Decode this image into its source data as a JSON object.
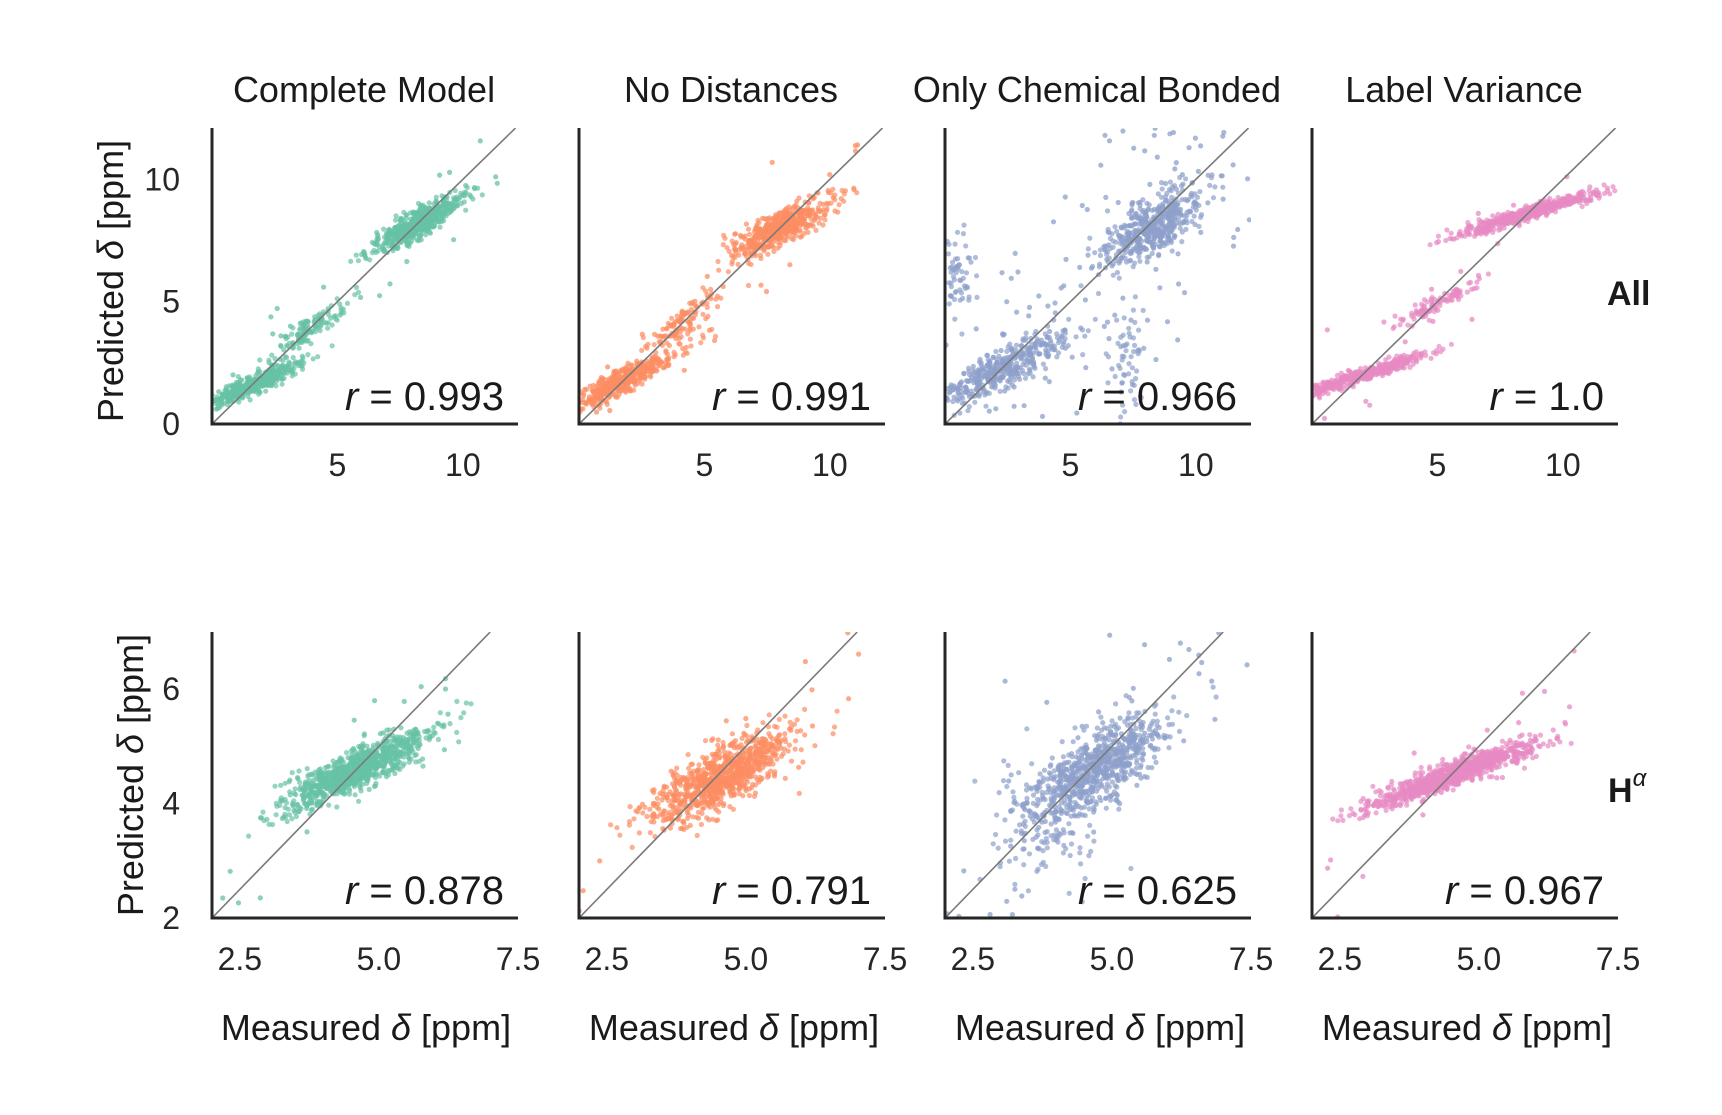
{
  "figure": {
    "col_titles": [
      "Complete Model",
      "No Distances",
      "Only Chemical Bonded",
      "Label Variance"
    ],
    "row_labels": [
      {
        "text": "All",
        "sup": ""
      },
      {
        "text": "H",
        "sup": "α"
      }
    ],
    "y_label": {
      "prefix": "Predicted ",
      "symbol": "δ",
      "suffix": " [ppm]"
    },
    "x_label": {
      "prefix": "Measured ",
      "symbol": "δ",
      "suffix": " [ppm]"
    }
  },
  "colors": {
    "panel_colors": [
      "#66c2a5",
      "#fc8d62",
      "#8da0cb",
      "#e78ac3"
    ],
    "diagonal": "#7a7a7a",
    "axis": "#262626"
  },
  "chart_data": [
    {
      "type": "scatter",
      "row": 0,
      "col": 0,
      "title": "Complete Model",
      "r_prefix": "r",
      "r_value": "= 0.993",
      "xlim": [
        0,
        12.2
      ],
      "ylim": [
        0,
        12.1
      ],
      "xticks": [
        "5",
        "10"
      ],
      "yticks": [
        "0",
        "5",
        "10"
      ],
      "show_yticks": true,
      "clusters": [
        {
          "cx": 1.6,
          "cy": 1.6,
          "sx": 1.0,
          "sy": 0.5,
          "rho": 0.92,
          "n": 420
        },
        {
          "cx": 3.8,
          "cy": 3.8,
          "sx": 0.8,
          "sy": 0.6,
          "rho": 0.9,
          "n": 140
        },
        {
          "cx": 8.2,
          "cy": 8.2,
          "sx": 0.9,
          "sy": 0.6,
          "rho": 0.88,
          "n": 520
        }
      ],
      "outliers": 25,
      "outlier_spread": 1.0
    },
    {
      "type": "scatter",
      "row": 0,
      "col": 1,
      "title": "No Distances",
      "r_prefix": "r",
      "r_value": "= 0.991",
      "xlim": [
        0,
        12.2
      ],
      "ylim": [
        0,
        12.1
      ],
      "xticks": [
        "5",
        "10"
      ],
      "yticks": [
        "0",
        "5",
        "10"
      ],
      "show_yticks": false,
      "clusters": [
        {
          "cx": 1.8,
          "cy": 1.8,
          "sx": 1.1,
          "sy": 0.6,
          "rho": 0.9,
          "n": 420
        },
        {
          "cx": 4.2,
          "cy": 4.2,
          "sx": 0.7,
          "sy": 0.6,
          "rho": 0.85,
          "n": 120
        },
        {
          "cx": 8.0,
          "cy": 8.0,
          "sx": 1.0,
          "sy": 0.6,
          "rho": 0.82,
          "n": 520
        }
      ],
      "outliers": 30,
      "outlier_spread": 1.3
    },
    {
      "type": "scatter",
      "row": 0,
      "col": 2,
      "title": "Only Chemical Bonded",
      "r_prefix": "r",
      "r_value": "= 0.966",
      "xlim": [
        0,
        12.2
      ],
      "ylim": [
        0,
        12.1
      ],
      "xticks": [
        "5",
        "10"
      ],
      "yticks": [
        "0",
        "5",
        "10"
      ],
      "show_yticks": false,
      "clusters": [
        {
          "cx": 2.2,
          "cy": 2.2,
          "sx": 1.3,
          "sy": 0.8,
          "rho": 0.85,
          "n": 420
        },
        {
          "cx": 8.2,
          "cy": 8.0,
          "sx": 1.0,
          "sy": 0.8,
          "rho": 0.7,
          "n": 480
        },
        {
          "cx": 0.6,
          "cy": 6.0,
          "sx": 0.3,
          "sy": 0.9,
          "rho": 0.0,
          "n": 60
        },
        {
          "cx": 7.3,
          "cy": 2.5,
          "sx": 0.3,
          "sy": 1.4,
          "rho": 0.0,
          "n": 60
        }
      ],
      "outliers": 160,
      "outlier_spread": 3.0
    },
    {
      "type": "scatter",
      "row": 0,
      "col": 3,
      "title": "Label Variance",
      "r_prefix": "r",
      "r_value": "= 1.0",
      "xlim": [
        0,
        12.2
      ],
      "ylim": [
        0,
        12.1
      ],
      "xticks": [
        "5",
        "10"
      ],
      "yticks": [
        "0",
        "5",
        "10"
      ],
      "show_yticks": false,
      "clusters": [
        {
          "cx": 2.0,
          "cy": 2.0,
          "sx": 1.3,
          "sy": 0.45,
          "rho": 0.95,
          "n": 420
        },
        {
          "cx": 8.6,
          "cy": 8.6,
          "sx": 1.4,
          "sy": 0.45,
          "rho": 0.95,
          "n": 520
        },
        {
          "cx": 4.8,
          "cy": 4.8,
          "sx": 0.8,
          "sy": 0.45,
          "rho": 0.9,
          "n": 100
        }
      ],
      "outliers": 20,
      "outlier_spread": 1.0
    },
    {
      "type": "scatter",
      "row": 1,
      "col": 0,
      "title": "",
      "r_prefix": "r",
      "r_value": "= 0.878",
      "xlim": [
        2.0,
        7.5
      ],
      "ylim": [
        2.0,
        7.0
      ],
      "xticks": [
        "2.5",
        "5.0",
        "7.5"
      ],
      "yticks": [
        "2",
        "4",
        "6"
      ],
      "show_yticks": true,
      "clusters": [
        {
          "cx": 4.6,
          "cy": 4.6,
          "sx": 0.65,
          "sy": 0.35,
          "rho": 0.85,
          "n": 900
        }
      ],
      "outliers": 20,
      "outlier_spread": 0.6
    },
    {
      "type": "scatter",
      "row": 1,
      "col": 1,
      "title": "",
      "r_prefix": "r",
      "r_value": "= 0.791",
      "xlim": [
        2.0,
        7.5
      ],
      "ylim": [
        2.0,
        7.0
      ],
      "xticks": [
        "2.5",
        "5.0",
        "7.5"
      ],
      "yticks": [
        "2",
        "4",
        "6"
      ],
      "show_yticks": false,
      "clusters": [
        {
          "cx": 4.55,
          "cy": 4.45,
          "sx": 0.62,
          "sy": 0.4,
          "rho": 0.75,
          "n": 900
        }
      ],
      "outliers": 25,
      "outlier_spread": 0.6
    },
    {
      "type": "scatter",
      "row": 1,
      "col": 2,
      "title": "",
      "r_prefix": "r",
      "r_value": "= 0.625",
      "xlim": [
        2.0,
        7.5
      ],
      "ylim": [
        2.0,
        7.0
      ],
      "xticks": [
        "2.5",
        "5.0",
        "7.5"
      ],
      "yticks": [
        "2",
        "4",
        "6"
      ],
      "show_yticks": false,
      "clusters": [
        {
          "cx": 4.7,
          "cy": 4.6,
          "sx": 0.6,
          "sy": 0.45,
          "rho": 0.7,
          "n": 750
        },
        {
          "cx": 3.8,
          "cy": 3.5,
          "sx": 0.6,
          "sy": 0.5,
          "rho": 0.1,
          "n": 120
        }
      ],
      "outliers": 60,
      "outlier_spread": 1.0
    },
    {
      "type": "scatter",
      "row": 1,
      "col": 3,
      "title": "",
      "r_prefix": "r",
      "r_value": "= 0.967",
      "xlim": [
        2.0,
        7.5
      ],
      "ylim": [
        2.0,
        7.0
      ],
      "xticks": [
        "2.5",
        "5.0",
        "7.5"
      ],
      "yticks": [
        "2",
        "4",
        "6"
      ],
      "show_yticks": false,
      "clusters": [
        {
          "cx": 4.5,
          "cy": 4.5,
          "sx": 0.75,
          "sy": 0.3,
          "rho": 0.93,
          "n": 900
        }
      ],
      "outliers": 20,
      "outlier_spread": 0.6
    }
  ]
}
